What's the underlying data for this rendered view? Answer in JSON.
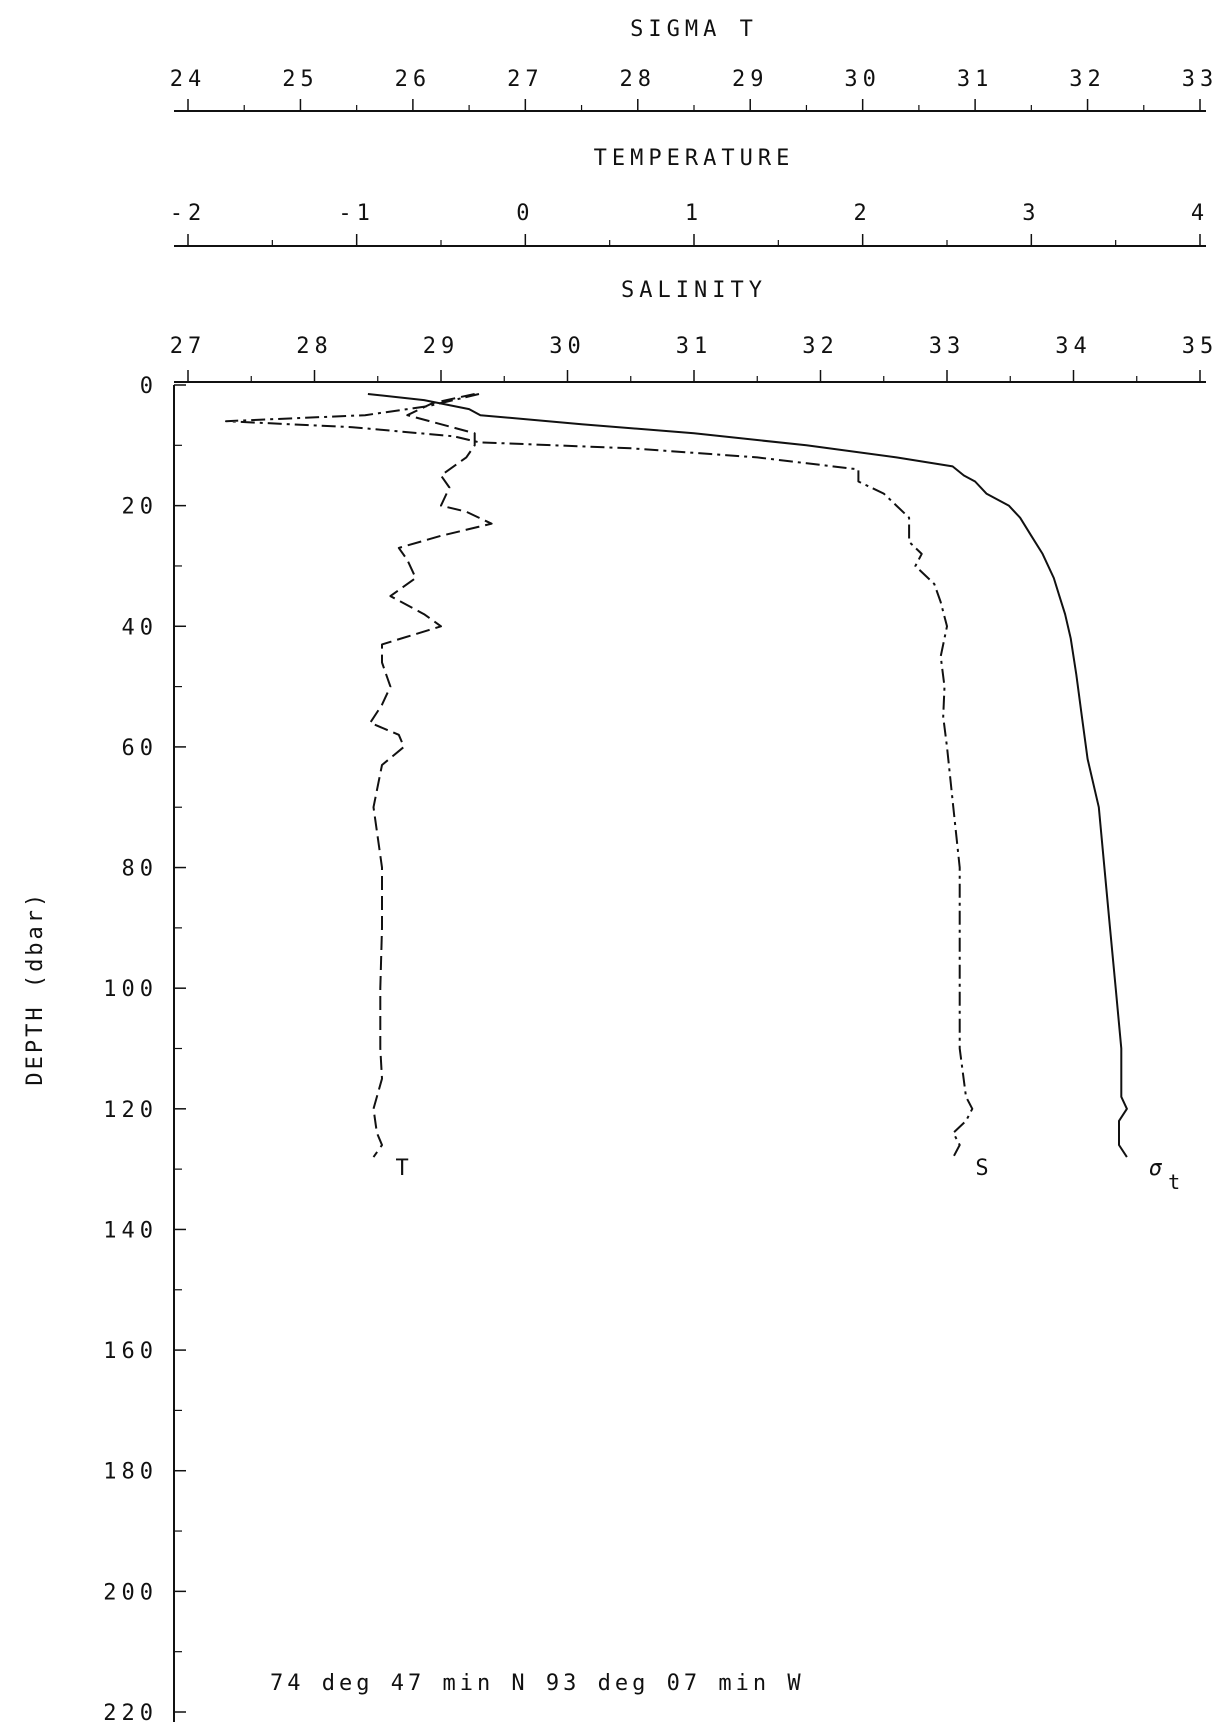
{
  "chart_data": {
    "type": "line",
    "top_axes": [
      {
        "id": "sigma_t",
        "title": "SIGMA T",
        "range": [
          24,
          33
        ],
        "ticks": [
          24,
          25,
          26,
          27,
          28,
          29,
          30,
          31,
          32,
          33
        ],
        "tick_labels": [
          "24",
          "25",
          "26",
          "27",
          "28",
          "29",
          "30",
          "31",
          "32",
          "33"
        ]
      },
      {
        "id": "temperature",
        "title": "TEMPERATURE",
        "range": [
          -2,
          4
        ],
        "ticks": [
          -2,
          -1,
          0,
          1,
          2,
          3,
          4
        ],
        "tick_labels": [
          "-2",
          "-1",
          "0",
          "1",
          "2",
          "3",
          "4"
        ]
      },
      {
        "id": "salinity",
        "title": "SALINITY",
        "range": [
          27,
          35
        ],
        "ticks": [
          27,
          28,
          29,
          30,
          31,
          32,
          33,
          34,
          35
        ],
        "tick_labels": [
          "27",
          "28",
          "29",
          "30",
          "31",
          "32",
          "33",
          "34",
          "35"
        ]
      }
    ],
    "y_axis": {
      "label": "DEPTH (dbar)",
      "range": [
        0,
        220
      ],
      "inverted": true,
      "ticks": [
        0,
        20,
        40,
        60,
        80,
        100,
        120,
        140,
        160,
        180,
        200,
        220
      ],
      "tick_labels": [
        "0",
        "20",
        "40",
        "60",
        "80",
        "100",
        "120",
        "140",
        "160",
        "180",
        "200",
        "220"
      ]
    },
    "grid": false,
    "legend": "none",
    "series": [
      {
        "name": "T",
        "axis": "temperature",
        "style": "dashed",
        "points": [
          [
            -0.3,
            1.5
          ],
          [
            -0.55,
            3
          ],
          [
            -0.7,
            5
          ],
          [
            -0.3,
            8
          ],
          [
            -0.3,
            10
          ],
          [
            -0.35,
            12
          ],
          [
            -0.5,
            15
          ],
          [
            -0.45,
            17
          ],
          [
            -0.5,
            20
          ],
          [
            -0.35,
            21
          ],
          [
            -0.2,
            23
          ],
          [
            -0.5,
            25
          ],
          [
            -0.75,
            27
          ],
          [
            -0.7,
            29
          ],
          [
            -0.65,
            32
          ],
          [
            -0.8,
            35
          ],
          [
            -0.6,
            38
          ],
          [
            -0.5,
            40
          ],
          [
            -0.85,
            43
          ],
          [
            -0.85,
            46
          ],
          [
            -0.8,
            50
          ],
          [
            -0.85,
            53
          ],
          [
            -0.92,
            56
          ],
          [
            -0.75,
            58
          ],
          [
            -0.72,
            60
          ],
          [
            -0.85,
            63
          ],
          [
            -0.9,
            70
          ],
          [
            -0.85,
            80
          ],
          [
            -0.85,
            90
          ],
          [
            -0.86,
            100
          ],
          [
            -0.86,
            110
          ],
          [
            -0.85,
            115
          ],
          [
            -0.9,
            120
          ],
          [
            -0.88,
            124
          ],
          [
            -0.85,
            126
          ],
          [
            -0.9,
            128
          ]
        ]
      },
      {
        "name": "S",
        "axis": "salinity",
        "style": "dash-dot",
        "points": [
          [
            29.3,
            1.5
          ],
          [
            28.9,
            3.5
          ],
          [
            28.4,
            5
          ],
          [
            27.3,
            6
          ],
          [
            28.3,
            7
          ],
          [
            29.1,
            8.5
          ],
          [
            29.3,
            9.5
          ],
          [
            30.5,
            10.5
          ],
          [
            31.5,
            12
          ],
          [
            32.3,
            14
          ],
          [
            32.3,
            16
          ],
          [
            32.5,
            18
          ],
          [
            32.6,
            20
          ],
          [
            32.7,
            22
          ],
          [
            32.7,
            24
          ],
          [
            32.7,
            26
          ],
          [
            32.8,
            28
          ],
          [
            32.75,
            30
          ],
          [
            32.9,
            33
          ],
          [
            32.95,
            36
          ],
          [
            33.0,
            40
          ],
          [
            32.95,
            45
          ],
          [
            32.98,
            50
          ],
          [
            32.97,
            55
          ],
          [
            33.0,
            60
          ],
          [
            33.05,
            70
          ],
          [
            33.1,
            80
          ],
          [
            33.1,
            90
          ],
          [
            33.1,
            100
          ],
          [
            33.1,
            110
          ],
          [
            33.15,
            118
          ],
          [
            33.2,
            120
          ],
          [
            33.15,
            122
          ],
          [
            33.05,
            124
          ],
          [
            33.1,
            126
          ],
          [
            33.05,
            128
          ]
        ]
      },
      {
        "name": "σt",
        "axis": "sigma_t",
        "style": "solid",
        "points": [
          [
            25.6,
            1.5
          ],
          [
            26.1,
            2.5
          ],
          [
            26.5,
            4
          ],
          [
            26.6,
            5
          ],
          [
            27.5,
            6.5
          ],
          [
            28.5,
            8
          ],
          [
            29.5,
            10
          ],
          [
            30.3,
            12
          ],
          [
            30.8,
            13.5
          ],
          [
            30.9,
            15
          ],
          [
            31.0,
            16
          ],
          [
            31.1,
            18
          ],
          [
            31.3,
            20
          ],
          [
            31.4,
            22
          ],
          [
            31.5,
            25
          ],
          [
            31.6,
            28
          ],
          [
            31.7,
            32
          ],
          [
            31.75,
            35
          ],
          [
            31.8,
            38
          ],
          [
            31.85,
            42
          ],
          [
            31.9,
            48
          ],
          [
            31.95,
            55
          ],
          [
            32.0,
            62
          ],
          [
            32.1,
            70
          ],
          [
            32.15,
            80
          ],
          [
            32.2,
            90
          ],
          [
            32.25,
            100
          ],
          [
            32.3,
            110
          ],
          [
            32.3,
            118
          ],
          [
            32.35,
            120
          ],
          [
            32.28,
            122
          ],
          [
            32.28,
            126
          ],
          [
            32.35,
            128
          ]
        ]
      }
    ],
    "curve_labels": [
      {
        "text": "T",
        "series": "T"
      },
      {
        "text": "S",
        "series": "S"
      },
      {
        "text": "σ",
        "subscript": "t",
        "series": "σt"
      }
    ],
    "footer": "74 deg 47 min N   93 deg 07 min W"
  }
}
